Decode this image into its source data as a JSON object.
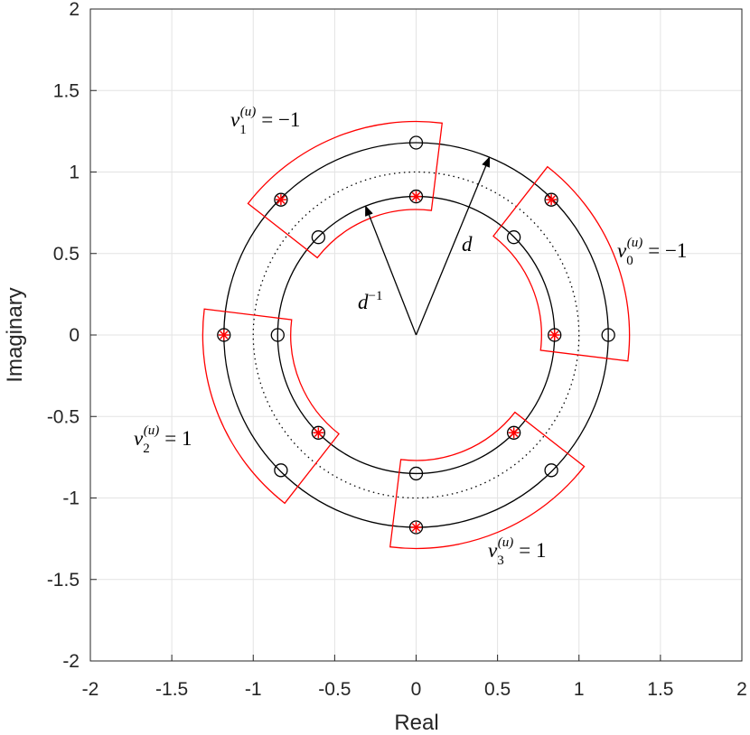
{
  "chart_data": {
    "type": "scatter",
    "xlabel": "Real",
    "ylabel": "Imaginary",
    "xlim": [
      -2,
      2
    ],
    "ylim": [
      -2,
      2
    ],
    "xticks": [
      -2,
      -1.5,
      -1,
      -0.5,
      0,
      0.5,
      1,
      1.5,
      2
    ],
    "yticks": [
      -2,
      -1.5,
      -1,
      -0.5,
      0,
      0.5,
      1,
      1.5,
      2
    ],
    "grid": true,
    "series": [
      {
        "marker": "circle",
        "color": "#000000",
        "x": [
          1.18,
          0.83,
          0,
          -0.83,
          -1.18,
          -0.83,
          0,
          0.83,
          0.85,
          0.6,
          0,
          -0.6,
          -0.85,
          -0.6,
          0,
          0.6
        ],
        "y": [
          0,
          0.83,
          1.18,
          0.83,
          0,
          -0.83,
          -1.18,
          -0.83,
          0,
          0.6,
          0.85,
          0.6,
          0,
          -0.6,
          -0.85,
          -0.6
        ]
      },
      {
        "marker": "asterisk",
        "color": "#ff0000",
        "x": [
          0.85,
          0.83,
          0,
          -0.83,
          -1.18,
          -0.6,
          0,
          0.6
        ],
        "y": [
          0,
          0.83,
          0.85,
          0.83,
          0,
          -0.6,
          -1.18,
          -0.6
        ]
      }
    ],
    "circles": [
      {
        "r": 1.18,
        "style": "solid",
        "color": "#000000"
      },
      {
        "r": 0.85,
        "style": "solid",
        "color": "#000000"
      },
      {
        "r": 1,
        "style": "dotted",
        "color": "#000000"
      }
    ],
    "sectors": [
      {
        "angle_start": -7,
        "angle_end": 52,
        "r_inner": 0.77,
        "r_outer": 1.31,
        "color": "#ff0000"
      },
      {
        "angle_start": 83,
        "angle_end": 142,
        "r_inner": 0.77,
        "r_outer": 1.31,
        "color": "#ff0000"
      },
      {
        "angle_start": 173,
        "angle_end": 232,
        "r_inner": 0.77,
        "r_outer": 1.31,
        "color": "#ff0000"
      },
      {
        "angle_start": 263,
        "angle_end": 322,
        "r_inner": 0.77,
        "r_outer": 1.31,
        "color": "#ff0000"
      }
    ],
    "arrows": [
      {
        "end": [
          0.45,
          1.09
        ],
        "label": {
          "base": "d"
        }
      },
      {
        "end": [
          -0.31,
          0.79
        ],
        "label": {
          "base": "d",
          "sup": "−1"
        }
      }
    ],
    "annotations": [
      {
        "base": "v",
        "sub": "0",
        "sup": "(u)",
        "rhs": "= −1"
      },
      {
        "base": "v",
        "sub": "1",
        "sup": "(u)",
        "rhs": "= −1"
      },
      {
        "base": "v",
        "sub": "2",
        "sup": "(u)",
        "rhs": "= 1"
      },
      {
        "base": "v",
        "sub": "3",
        "sup": "(u)",
        "rhs": "= 1"
      }
    ]
  }
}
